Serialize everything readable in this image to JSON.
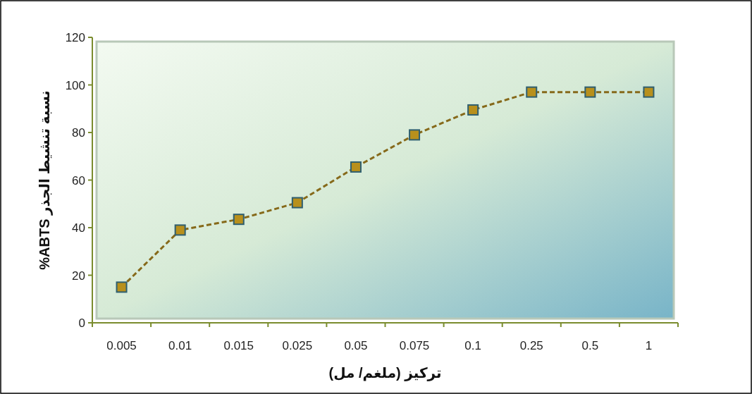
{
  "chart_data": {
    "type": "line",
    "xlabel": "تركيز (ملغم/ مل)",
    "ylabel": "نسبة تنشيط الجذر ABTS%",
    "categories": [
      "0.005",
      "0.01",
      "0.015",
      "0.025",
      "0.05",
      "0.075",
      "0.1",
      "0.25",
      "0.5",
      "1"
    ],
    "series": [
      {
        "color": "#86691a",
        "values": [
          15,
          39,
          43.5,
          50.5,
          65.5,
          79,
          89.5,
          97,
          97,
          97
        ]
      }
    ],
    "ylim": [
      0,
      120
    ],
    "yticks": [
      0,
      20,
      40,
      60,
      80,
      100,
      120
    ],
    "grid": false,
    "marker": "square",
    "line_style": "dashed"
  }
}
